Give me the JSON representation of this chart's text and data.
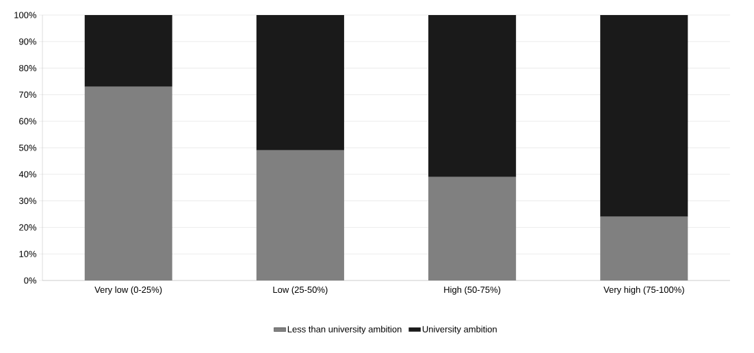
{
  "chart_data": {
    "type": "bar",
    "stacked": true,
    "categories": [
      "Very low (0-25%)",
      "Low (25-50%)",
      "High (50-75%)",
      "Very high (75-100%)"
    ],
    "series": [
      {
        "name": "Less than university ambition",
        "color": "#808080",
        "values": [
          73,
          49,
          39,
          24
        ]
      },
      {
        "name": "University ambition",
        "color": "#1a1a1a",
        "values": [
          27,
          51,
          61,
          76
        ]
      }
    ],
    "ylim": [
      0,
      100
    ],
    "yticks": [
      {
        "value": 0,
        "label": "0%"
      },
      {
        "value": 10,
        "label": "10%"
      },
      {
        "value": 20,
        "label": "20%"
      },
      {
        "value": 30,
        "label": "30%"
      },
      {
        "value": 40,
        "label": "40%"
      },
      {
        "value": 50,
        "label": "50%"
      },
      {
        "value": 60,
        "label": "60%"
      },
      {
        "value": 70,
        "label": "70%"
      },
      {
        "value": 80,
        "label": "80%"
      },
      {
        "value": 90,
        "label": "90%"
      },
      {
        "value": 100,
        "label": "100%"
      }
    ],
    "grid": "y",
    "legend": "bottom"
  }
}
